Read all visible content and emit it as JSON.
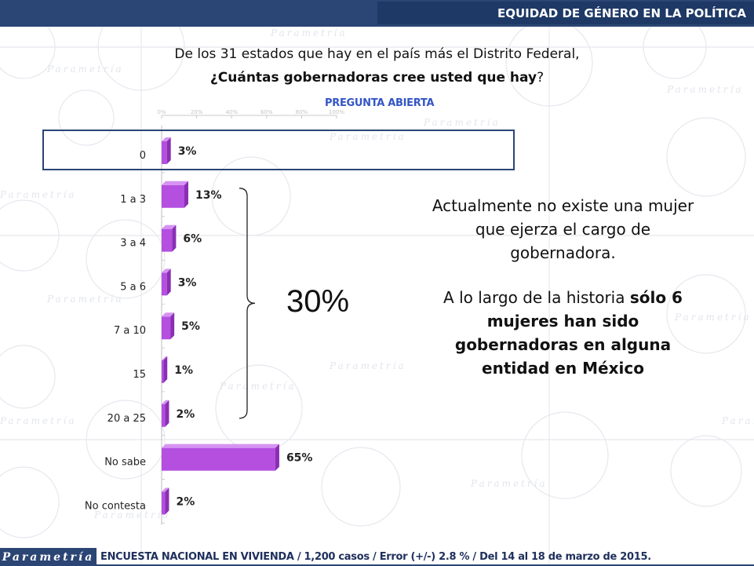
{
  "header": {
    "section_title": "EQUIDAD DE GÉNERO EN LA POLÍTICA"
  },
  "question": {
    "line1": "De los 31 estados que hay en el país más el Distrito Federal,",
    "line2_bold": "¿Cuántas gobernadoras cree usted que hay",
    "line2_end": "?",
    "tag": "PREGUNTA ABIERTA"
  },
  "chart_data": {
    "type": "bar",
    "orientation": "horizontal",
    "categories": [
      "0",
      "1 a 3",
      "3 a 4",
      "5 a 6",
      "7 a 10",
      "15",
      "20 a 25",
      "No sabe",
      "No contesta"
    ],
    "values": [
      3,
      13,
      6,
      3,
      5,
      1,
      2,
      65,
      2
    ],
    "data_labels": [
      "3%",
      "13%",
      "6%",
      "3%",
      "5%",
      "1%",
      "2%",
      "65%",
      "2%"
    ],
    "axis_ticks": [
      "0%",
      "20%",
      "40%",
      "60%",
      "80%",
      "100%"
    ],
    "xlim": [
      0,
      100
    ],
    "highlighted_category": "0",
    "bar_color": "#b44fe0",
    "bracket_label": "30%"
  },
  "side_note": {
    "paragraph1": "Actualmente no existe una mujer que ejerza el cargo de gobernadora.",
    "paragraph2_normal": "A lo largo de la historia ",
    "paragraph2_bold": "sólo 6 mujeres han sido gobernadoras en alguna entidad en México"
  },
  "footer": {
    "logo": "Parametría",
    "source": "ENCUESTA NACIONAL EN VIVIENDA / 1,200 casos / Error (+/-) 2.8 % / Del 14 al 18 de marzo de 2015."
  },
  "colors": {
    "header": "#2b4574",
    "highlight_box": "#2b4574",
    "accent_text": "#3355c6"
  }
}
